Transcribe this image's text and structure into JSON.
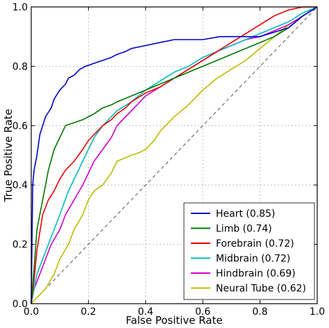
{
  "chart_data": {
    "type": "line",
    "xlabel": "False Positive Rate",
    "ylabel": "True Positive Rate",
    "xlim": [
      0.0,
      1.0
    ],
    "ylim": [
      0.0,
      1.0
    ],
    "xticks": [
      "0.0",
      "0.2",
      "0.4",
      "0.6",
      "0.8",
      "1.0"
    ],
    "yticks": [
      "0.0",
      "0.2",
      "0.4",
      "0.6",
      "0.8",
      "1.0"
    ],
    "grid": true,
    "legend_position": "lower-right",
    "diagonal": {
      "x": [
        0,
        1
      ],
      "y": [
        0,
        1
      ],
      "color": "#555555",
      "style": "dashed"
    },
    "series": [
      {
        "name": "Heart (0.85)",
        "color": "#0000cc",
        "x": [
          0,
          0.005,
          0.01,
          0.02,
          0.03,
          0.04,
          0.05,
          0.07,
          0.08,
          0.1,
          0.12,
          0.13,
          0.15,
          0.17,
          0.19,
          0.22,
          0.25,
          0.28,
          0.3,
          0.33,
          0.35,
          0.4,
          0.45,
          0.5,
          0.6,
          0.66,
          0.7,
          0.8,
          0.9,
          0.95,
          1.0
        ],
        "y": [
          0,
          0.4,
          0.45,
          0.5,
          0.57,
          0.6,
          0.63,
          0.66,
          0.69,
          0.72,
          0.74,
          0.76,
          0.77,
          0.79,
          0.8,
          0.81,
          0.82,
          0.83,
          0.84,
          0.85,
          0.86,
          0.87,
          0.88,
          0.89,
          0.89,
          0.9,
          0.9,
          0.9,
          0.93,
          0.97,
          1.0
        ]
      },
      {
        "name": "Limb (0.74)",
        "color": "#007700",
        "x": [
          0,
          0.01,
          0.02,
          0.04,
          0.06,
          0.08,
          0.1,
          0.12,
          0.15,
          0.18,
          0.2,
          0.22,
          0.25,
          0.28,
          0.3,
          0.35,
          0.4,
          0.45,
          0.5,
          0.55,
          0.6,
          0.65,
          0.7,
          0.75,
          0.8,
          0.85,
          0.9,
          0.95,
          1.0
        ],
        "y": [
          0,
          0.12,
          0.25,
          0.35,
          0.45,
          0.52,
          0.56,
          0.6,
          0.61,
          0.62,
          0.63,
          0.64,
          0.66,
          0.67,
          0.68,
          0.7,
          0.72,
          0.74,
          0.76,
          0.78,
          0.8,
          0.82,
          0.84,
          0.86,
          0.88,
          0.9,
          0.93,
          0.97,
          1.0
        ]
      },
      {
        "name": "Forebrain (0.72)",
        "color": "#ee0000",
        "x": [
          0,
          0.01,
          0.02,
          0.04,
          0.06,
          0.08,
          0.1,
          0.12,
          0.15,
          0.18,
          0.2,
          0.22,
          0.25,
          0.28,
          0.3,
          0.33,
          0.35,
          0.4,
          0.45,
          0.5,
          0.55,
          0.6,
          0.65,
          0.7,
          0.75,
          0.8,
          0.85,
          0.9,
          0.95,
          1.0
        ],
        "y": [
          0,
          0.08,
          0.18,
          0.3,
          0.35,
          0.38,
          0.42,
          0.45,
          0.48,
          0.52,
          0.55,
          0.57,
          0.6,
          0.62,
          0.64,
          0.66,
          0.68,
          0.71,
          0.73,
          0.76,
          0.79,
          0.82,
          0.85,
          0.88,
          0.91,
          0.94,
          0.97,
          0.99,
          1.0,
          1.0
        ]
      },
      {
        "name": "Midbrain (0.72)",
        "color": "#00bbbb",
        "x": [
          0,
          0.01,
          0.02,
          0.04,
          0.06,
          0.08,
          0.1,
          0.13,
          0.15,
          0.18,
          0.2,
          0.22,
          0.25,
          0.28,
          0.3,
          0.35,
          0.4,
          0.45,
          0.5,
          0.55,
          0.6,
          0.65,
          0.7,
          0.75,
          0.8,
          0.85,
          0.9,
          0.95,
          1.0
        ],
        "y": [
          0,
          0.05,
          0.1,
          0.15,
          0.2,
          0.25,
          0.3,
          0.38,
          0.42,
          0.48,
          0.52,
          0.56,
          0.6,
          0.63,
          0.65,
          0.68,
          0.72,
          0.75,
          0.78,
          0.8,
          0.83,
          0.85,
          0.87,
          0.89,
          0.91,
          0.93,
          0.95,
          0.98,
          1.0
        ]
      },
      {
        "name": "Hindbrain (0.69)",
        "color": "#cc00cc",
        "x": [
          0,
          0.01,
          0.03,
          0.05,
          0.07,
          0.1,
          0.12,
          0.15,
          0.18,
          0.2,
          0.22,
          0.25,
          0.28,
          0.3,
          0.35,
          0.4,
          0.45,
          0.5,
          0.55,
          0.6,
          0.65,
          0.7,
          0.75,
          0.8,
          0.85,
          0.9,
          0.95,
          1.0
        ],
        "y": [
          0,
          0.05,
          0.1,
          0.15,
          0.2,
          0.25,
          0.3,
          0.35,
          0.4,
          0.44,
          0.48,
          0.52,
          0.56,
          0.6,
          0.65,
          0.7,
          0.73,
          0.76,
          0.79,
          0.82,
          0.85,
          0.87,
          0.89,
          0.9,
          0.92,
          0.94,
          0.97,
          1.0
        ]
      },
      {
        "name": "Neural Tube (0.62)",
        "color": "#bbbb00",
        "x": [
          0,
          0.02,
          0.05,
          0.08,
          0.1,
          0.13,
          0.15,
          0.18,
          0.2,
          0.22,
          0.25,
          0.28,
          0.3,
          0.35,
          0.38,
          0.4,
          0.43,
          0.45,
          0.5,
          0.55,
          0.6,
          0.65,
          0.7,
          0.75,
          0.8,
          0.85,
          0.9,
          0.95,
          1.0
        ],
        "y": [
          0,
          0.02,
          0.05,
          0.1,
          0.15,
          0.2,
          0.25,
          0.3,
          0.35,
          0.38,
          0.4,
          0.44,
          0.48,
          0.5,
          0.51,
          0.52,
          0.55,
          0.58,
          0.63,
          0.67,
          0.72,
          0.76,
          0.79,
          0.82,
          0.86,
          0.9,
          0.94,
          0.97,
          1.0
        ]
      }
    ]
  }
}
